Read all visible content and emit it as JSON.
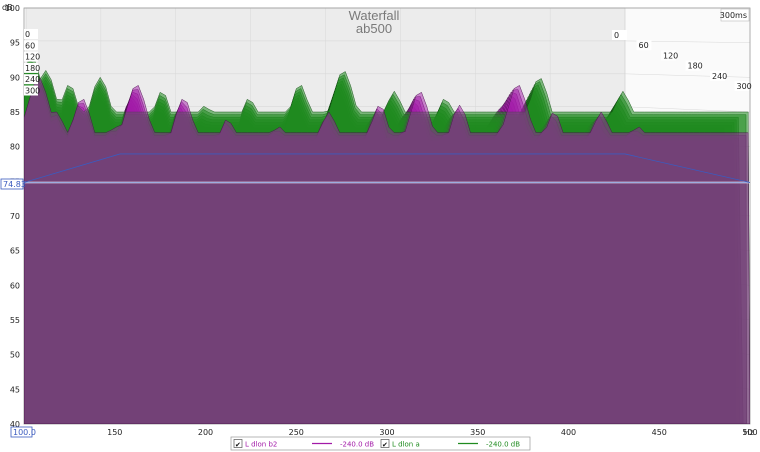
{
  "chart_data": {
    "type": "waterfall",
    "title": "Waterfall",
    "subtitle": "ab500",
    "y_unit": "dB",
    "x_unit": "Hz",
    "ylim": [
      40,
      100
    ],
    "y_ticks": [
      "40",
      "45",
      "50",
      "55",
      "60",
      "65",
      "70",
      "75",
      "80",
      "85",
      "90",
      "95",
      "100"
    ],
    "xlim": [
      100,
      500
    ],
    "x_ticks": [
      "150",
      "200",
      "250",
      "300",
      "350",
      "400",
      "450",
      "500"
    ],
    "x_start_box": "100.0",
    "cursor_level_label": "74.83",
    "cursor_level": 74.83,
    "time_unit": "ms",
    "time_max_label": "300ms",
    "time_slices_left": [
      "0",
      "60",
      "120",
      "180",
      "240",
      "300"
    ],
    "time_slices_right": [
      "0",
      "60",
      "120",
      "180",
      "240",
      "300"
    ],
    "grid": true,
    "series": [
      {
        "name": "L dlon b2",
        "color": "#a21aa8",
        "legend_value": "-240.0 dB",
        "checked": true
      },
      {
        "name": "L dlon a",
        "color": "#1f8b1f",
        "legend_value": "-240.0 dB",
        "checked": true
      }
    ]
  },
  "ui": {
    "check_mark": "✔"
  }
}
